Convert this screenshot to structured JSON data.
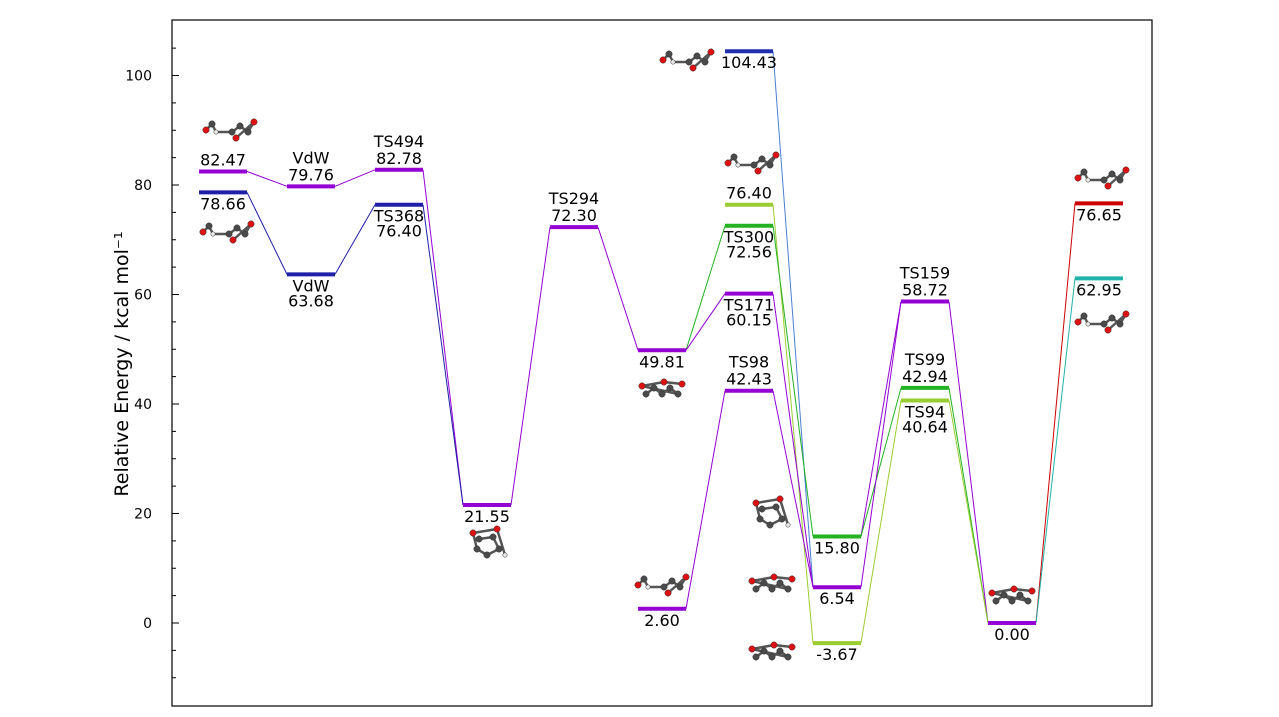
{
  "axes": {
    "ylabel": "Relative Energy / kcal mol⁻¹",
    "yticks": [
      0,
      20,
      40,
      60,
      80,
      100
    ],
    "ylim": [
      -15,
      110
    ]
  },
  "levels": [
    {
      "id": "react-purple",
      "col": 0,
      "energy": 82.47,
      "label": "82.47",
      "name": "",
      "color": "#9400d3"
    },
    {
      "id": "react-blue",
      "col": 0,
      "energy": 78.66,
      "label": "78.66",
      "name": "",
      "color": "#1f1fa8"
    },
    {
      "id": "vdw-purple",
      "col": 1,
      "energy": 79.76,
      "label": "79.76",
      "name": "VdW",
      "color": "#9400d3"
    },
    {
      "id": "vdw-blue",
      "col": 1,
      "energy": 63.68,
      "label": "63.68",
      "name": "VdW",
      "color": "#1f1fa8"
    },
    {
      "id": "ts494",
      "col": 2,
      "energy": 82.78,
      "label": "82.78",
      "name": "TS494",
      "color": "#9400d3"
    },
    {
      "id": "ts368",
      "col": 2,
      "energy": 76.4,
      "label": "76.40",
      "name": "TS368",
      "color": "#1f1fa8"
    },
    {
      "id": "int-21",
      "col": 3,
      "energy": 21.55,
      "label": "21.55",
      "name": "",
      "color": "#9400d3"
    },
    {
      "id": "ts294",
      "col": 4,
      "energy": 72.3,
      "label": "72.30",
      "name": "TS294",
      "color": "#9400d3"
    },
    {
      "id": "int-49",
      "col": 5,
      "energy": 49.81,
      "label": "49.81",
      "name": "",
      "color": "#9400d3"
    },
    {
      "id": "prod-2",
      "col": 5,
      "energy": 2.6,
      "label": "2.60",
      "name": "",
      "color": "#9400d3"
    },
    {
      "id": "prod-104",
      "col": 6,
      "energy": 104.43,
      "label": "104.43",
      "name": "",
      "color": "#1f2fb0"
    },
    {
      "id": "prod-76",
      "col": 6,
      "energy": 76.4,
      "label": "76.40",
      "name": "",
      "color": "#9acd32"
    },
    {
      "id": "ts300",
      "col": 6,
      "energy": 72.56,
      "label": "72.56",
      "name": "TS300",
      "color": "#22b222"
    },
    {
      "id": "ts171",
      "col": 6,
      "energy": 60.15,
      "label": "60.15",
      "name": "TS171",
      "color": "#9400d3"
    },
    {
      "id": "ts98",
      "col": 6,
      "energy": 42.43,
      "label": "42.43",
      "name": "TS98",
      "color": "#9400d3"
    },
    {
      "id": "int-15",
      "col": 7,
      "energy": 15.8,
      "label": "15.80",
      "name": "",
      "color": "#22b222"
    },
    {
      "id": "int-6",
      "col": 7,
      "energy": 6.54,
      "label": "6.54",
      "name": "",
      "color": "#9400d3"
    },
    {
      "id": "int-m3",
      "col": 7,
      "energy": -3.67,
      "label": "-3.67",
      "name": "",
      "color": "#9acd32"
    },
    {
      "id": "ts159",
      "col": 8,
      "energy": 58.72,
      "label": "58.72",
      "name": "TS159",
      "color": "#9400d3"
    },
    {
      "id": "ts99",
      "col": 8,
      "energy": 42.94,
      "label": "42.94",
      "name": "TS99",
      "color": "#22b222"
    },
    {
      "id": "ts94",
      "col": 8,
      "energy": 40.64,
      "label": "40.64",
      "name": "TS94",
      "color": "#9acd32"
    },
    {
      "id": "glob-min",
      "col": 9,
      "energy": 0.0,
      "label": "0.00",
      "name": "",
      "color": "#9400d3"
    },
    {
      "id": "prod-76b",
      "col": 10,
      "energy": 76.65,
      "label": "76.65",
      "name": "",
      "color": "#cc0000"
    },
    {
      "id": "prod-62",
      "col": 10,
      "energy": 62.95,
      "label": "62.95",
      "name": "",
      "color": "#20b2aa"
    }
  ],
  "connections": [
    {
      "from": "react-purple",
      "to": "vdw-purple",
      "color": "#9400d3"
    },
    {
      "from": "vdw-purple",
      "to": "ts494",
      "color": "#9400d3"
    },
    {
      "from": "ts494",
      "to": "int-21",
      "color": "#9400d3"
    },
    {
      "from": "react-blue",
      "to": "vdw-blue",
      "color": "#1f1fa8"
    },
    {
      "from": "vdw-blue",
      "to": "ts368",
      "color": "#1f1fa8"
    },
    {
      "from": "ts368",
      "to": "int-21",
      "color": "#1f1fa8"
    },
    {
      "from": "int-21",
      "to": "ts294",
      "color": "#9400d3"
    },
    {
      "from": "ts294",
      "to": "int-49",
      "color": "#9400d3"
    },
    {
      "from": "int-49",
      "to": "ts300",
      "color": "#22b222"
    },
    {
      "from": "int-49",
      "to": "ts171",
      "color": "#9400d3"
    },
    {
      "from": "prod-2",
      "to": "ts98",
      "color": "#9400d3"
    },
    {
      "from": "prod-104",
      "to": "int-6",
      "color": "#4a7fd4"
    },
    {
      "from": "prod-76",
      "to": "int-m3",
      "color": "#9acd32"
    },
    {
      "from": "ts300",
      "to": "int-15",
      "color": "#22b222"
    },
    {
      "from": "ts171",
      "to": "int-6",
      "color": "#9400d3"
    },
    {
      "from": "ts98",
      "to": "int-6",
      "color": "#9400d3"
    },
    {
      "from": "int-15",
      "to": "ts159",
      "color": "#9400d3"
    },
    {
      "from": "int-15",
      "to": "ts99",
      "color": "#22b222"
    },
    {
      "from": "int-6",
      "to": "ts159",
      "color": "#9400d3"
    },
    {
      "from": "int-m3",
      "to": "ts94",
      "color": "#9acd32"
    },
    {
      "from": "ts159",
      "to": "glob-min",
      "color": "#9400d3"
    },
    {
      "from": "ts99",
      "to": "glob-min",
      "color": "#22b222"
    },
    {
      "from": "ts94",
      "to": "glob-min",
      "color": "#9acd32"
    },
    {
      "from": "glob-min",
      "to": "prod-76b",
      "color": "#cc0000"
    },
    {
      "from": "glob-min",
      "to": "prod-62",
      "color": "#20b2aa"
    }
  ],
  "molecules": [
    {
      "id": "mol-reactant-top",
      "near": "react-purple",
      "kind": "split"
    },
    {
      "id": "mol-reactant-bottom",
      "near": "react-blue",
      "kind": "split"
    },
    {
      "id": "mol-int-21",
      "near": "int-21",
      "kind": "ring"
    },
    {
      "id": "mol-int-49",
      "near": "int-49",
      "kind": "chain"
    },
    {
      "id": "mol-prod-2",
      "near": "prod-2",
      "kind": "split"
    },
    {
      "id": "mol-prod-104",
      "near": "prod-104",
      "kind": "split"
    },
    {
      "id": "mol-prod-76",
      "near": "prod-76",
      "kind": "split"
    },
    {
      "id": "mol-int-15",
      "near": "int-15",
      "kind": "ring"
    },
    {
      "id": "mol-int-6",
      "near": "int-6",
      "kind": "chain"
    },
    {
      "id": "mol-int-m3",
      "near": "int-m3",
      "kind": "chain"
    },
    {
      "id": "mol-glob-min",
      "near": "glob-min",
      "kind": "chain"
    },
    {
      "id": "mol-prod-76b",
      "near": "prod-76b",
      "kind": "split"
    },
    {
      "id": "mol-prod-62",
      "near": "prod-62",
      "kind": "split"
    }
  ]
}
